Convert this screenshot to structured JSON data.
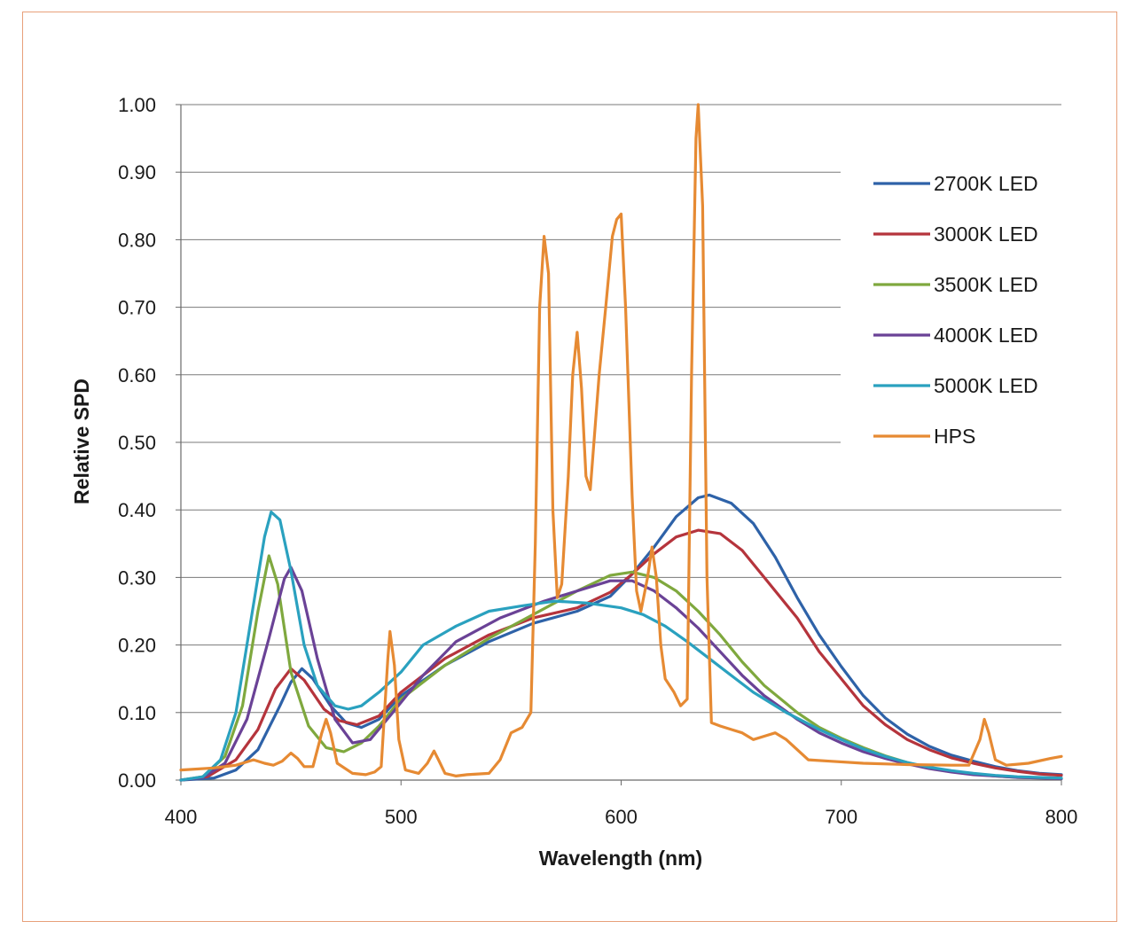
{
  "chart_data": {
    "type": "line",
    "title": "",
    "xlabel": "Wavelength (nm)",
    "ylabel": "Relative SPD",
    "xlim": [
      400,
      800
    ],
    "ylim": [
      0,
      1
    ],
    "x_ticks": [
      400,
      500,
      600,
      700,
      800
    ],
    "x_tick_labels": [
      "400",
      "500",
      "600",
      "700",
      "800"
    ],
    "y_ticks": [
      0,
      0.1,
      0.2,
      0.3,
      0.4,
      0.5,
      0.6,
      0.7,
      0.8,
      0.9,
      1.0
    ],
    "y_tick_labels": [
      "0.00",
      "0.10",
      "0.20",
      "0.30",
      "0.40",
      "0.50",
      "0.60",
      "0.70",
      "0.80",
      "0.90",
      "1.00"
    ],
    "grid": "horizontal",
    "legend_position": "right",
    "series": [
      {
        "name": "2700K LED",
        "color": "#2e62a8",
        "points": [
          [
            400,
            0
          ],
          [
            415,
            0.003
          ],
          [
            425,
            0.015
          ],
          [
            435,
            0.045
          ],
          [
            445,
            0.11
          ],
          [
            450,
            0.145
          ],
          [
            455,
            0.165
          ],
          [
            460,
            0.15
          ],
          [
            468,
            0.11
          ],
          [
            475,
            0.085
          ],
          [
            482,
            0.078
          ],
          [
            490,
            0.09
          ],
          [
            500,
            0.125
          ],
          [
            520,
            0.17
          ],
          [
            540,
            0.205
          ],
          [
            560,
            0.232
          ],
          [
            580,
            0.25
          ],
          [
            595,
            0.272
          ],
          [
            605,
            0.305
          ],
          [
            615,
            0.345
          ],
          [
            625,
            0.39
          ],
          [
            635,
            0.418
          ],
          [
            640,
            0.422
          ],
          [
            650,
            0.41
          ],
          [
            660,
            0.38
          ],
          [
            670,
            0.33
          ],
          [
            680,
            0.27
          ],
          [
            690,
            0.215
          ],
          [
            700,
            0.168
          ],
          [
            710,
            0.125
          ],
          [
            720,
            0.092
          ],
          [
            730,
            0.068
          ],
          [
            740,
            0.05
          ],
          [
            750,
            0.037
          ],
          [
            760,
            0.028
          ],
          [
            770,
            0.02
          ],
          [
            780,
            0.014
          ],
          [
            790,
            0.01
          ],
          [
            800,
            0.008
          ]
        ]
      },
      {
        "name": "3000K LED",
        "color": "#b5343c",
        "points": [
          [
            400,
            0
          ],
          [
            412,
            0.005
          ],
          [
            425,
            0.03
          ],
          [
            435,
            0.075
          ],
          [
            443,
            0.135
          ],
          [
            450,
            0.165
          ],
          [
            456,
            0.148
          ],
          [
            465,
            0.105
          ],
          [
            472,
            0.088
          ],
          [
            480,
            0.082
          ],
          [
            490,
            0.095
          ],
          [
            500,
            0.13
          ],
          [
            520,
            0.18
          ],
          [
            540,
            0.215
          ],
          [
            560,
            0.24
          ],
          [
            580,
            0.255
          ],
          [
            595,
            0.278
          ],
          [
            605,
            0.305
          ],
          [
            615,
            0.335
          ],
          [
            625,
            0.36
          ],
          [
            635,
            0.37
          ],
          [
            645,
            0.365
          ],
          [
            655,
            0.34
          ],
          [
            665,
            0.3
          ],
          [
            680,
            0.24
          ],
          [
            690,
            0.19
          ],
          [
            700,
            0.15
          ],
          [
            710,
            0.11
          ],
          [
            720,
            0.082
          ],
          [
            730,
            0.06
          ],
          [
            740,
            0.045
          ],
          [
            750,
            0.033
          ],
          [
            760,
            0.025
          ],
          [
            770,
            0.018
          ],
          [
            780,
            0.013
          ],
          [
            790,
            0.009
          ],
          [
            800,
            0.007
          ]
        ]
      },
      {
        "name": "3500K LED",
        "color": "#7fa83e",
        "points": [
          [
            400,
            0
          ],
          [
            410,
            0.005
          ],
          [
            420,
            0.035
          ],
          [
            428,
            0.11
          ],
          [
            435,
            0.25
          ],
          [
            440,
            0.332
          ],
          [
            444,
            0.29
          ],
          [
            450,
            0.16
          ],
          [
            458,
            0.08
          ],
          [
            466,
            0.048
          ],
          [
            474,
            0.042
          ],
          [
            482,
            0.055
          ],
          [
            490,
            0.08
          ],
          [
            500,
            0.12
          ],
          [
            520,
            0.17
          ],
          [
            540,
            0.21
          ],
          [
            560,
            0.245
          ],
          [
            580,
            0.28
          ],
          [
            595,
            0.303
          ],
          [
            605,
            0.308
          ],
          [
            615,
            0.3
          ],
          [
            625,
            0.28
          ],
          [
            635,
            0.25
          ],
          [
            645,
            0.215
          ],
          [
            655,
            0.175
          ],
          [
            665,
            0.14
          ],
          [
            680,
            0.1
          ],
          [
            690,
            0.078
          ],
          [
            700,
            0.062
          ],
          [
            710,
            0.048
          ],
          [
            720,
            0.036
          ],
          [
            730,
            0.026
          ],
          [
            740,
            0.018
          ],
          [
            750,
            0.013
          ],
          [
            760,
            0.009
          ],
          [
            770,
            0.006
          ],
          [
            780,
            0.004
          ],
          [
            790,
            0.003
          ],
          [
            800,
            0.002
          ]
        ]
      },
      {
        "name": "4000K LED",
        "color": "#6a4296",
        "points": [
          [
            400,
            0
          ],
          [
            410,
            0.004
          ],
          [
            420,
            0.025
          ],
          [
            430,
            0.09
          ],
          [
            440,
            0.21
          ],
          [
            447,
            0.298
          ],
          [
            450,
            0.315
          ],
          [
            455,
            0.28
          ],
          [
            462,
            0.18
          ],
          [
            470,
            0.09
          ],
          [
            478,
            0.055
          ],
          [
            486,
            0.06
          ],
          [
            495,
            0.095
          ],
          [
            510,
            0.155
          ],
          [
            525,
            0.205
          ],
          [
            545,
            0.24
          ],
          [
            565,
            0.265
          ],
          [
            580,
            0.28
          ],
          [
            595,
            0.295
          ],
          [
            605,
            0.295
          ],
          [
            615,
            0.28
          ],
          [
            625,
            0.255
          ],
          [
            635,
            0.225
          ],
          [
            645,
            0.19
          ],
          [
            655,
            0.155
          ],
          [
            665,
            0.125
          ],
          [
            680,
            0.09
          ],
          [
            690,
            0.07
          ],
          [
            700,
            0.055
          ],
          [
            710,
            0.042
          ],
          [
            720,
            0.032
          ],
          [
            730,
            0.024
          ],
          [
            740,
            0.017
          ],
          [
            750,
            0.012
          ],
          [
            760,
            0.008
          ],
          [
            770,
            0.006
          ],
          [
            780,
            0.004
          ],
          [
            790,
            0.003
          ],
          [
            800,
            0.002
          ]
        ]
      },
      {
        "name": "5000K LED",
        "color": "#2aa1bf",
        "points": [
          [
            400,
            0
          ],
          [
            410,
            0.005
          ],
          [
            418,
            0.03
          ],
          [
            425,
            0.1
          ],
          [
            432,
            0.24
          ],
          [
            438,
            0.36
          ],
          [
            441,
            0.397
          ],
          [
            445,
            0.385
          ],
          [
            450,
            0.31
          ],
          [
            456,
            0.2
          ],
          [
            462,
            0.14
          ],
          [
            470,
            0.11
          ],
          [
            476,
            0.105
          ],
          [
            482,
            0.11
          ],
          [
            490,
            0.13
          ],
          [
            500,
            0.16
          ],
          [
            510,
            0.2
          ],
          [
            525,
            0.228
          ],
          [
            540,
            0.25
          ],
          [
            555,
            0.258
          ],
          [
            570,
            0.265
          ],
          [
            585,
            0.262
          ],
          [
            600,
            0.255
          ],
          [
            610,
            0.245
          ],
          [
            620,
            0.228
          ],
          [
            630,
            0.205
          ],
          [
            640,
            0.18
          ],
          [
            650,
            0.155
          ],
          [
            660,
            0.13
          ],
          [
            675,
            0.1
          ],
          [
            690,
            0.075
          ],
          [
            700,
            0.06
          ],
          [
            710,
            0.046
          ],
          [
            720,
            0.035
          ],
          [
            730,
            0.026
          ],
          [
            740,
            0.019
          ],
          [
            750,
            0.014
          ],
          [
            760,
            0.01
          ],
          [
            770,
            0.007
          ],
          [
            780,
            0.005
          ],
          [
            790,
            0.004
          ],
          [
            800,
            0.003
          ]
        ]
      },
      {
        "name": "HPS",
        "color": "#e68a33",
        "points": [
          [
            400,
            0.015
          ],
          [
            415,
            0.018
          ],
          [
            425,
            0.022
          ],
          [
            433,
            0.03
          ],
          [
            438,
            0.025
          ],
          [
            442,
            0.022
          ],
          [
            446,
            0.028
          ],
          [
            450,
            0.04
          ],
          [
            453,
            0.032
          ],
          [
            456,
            0.02
          ],
          [
            460,
            0.02
          ],
          [
            464,
            0.07
          ],
          [
            466,
            0.09
          ],
          [
            468,
            0.07
          ],
          [
            471,
            0.025
          ],
          [
            478,
            0.01
          ],
          [
            484,
            0.008
          ],
          [
            488,
            0.012
          ],
          [
            491,
            0.02
          ],
          [
            494,
            0.18
          ],
          [
            495,
            0.22
          ],
          [
            497,
            0.17
          ],
          [
            499,
            0.06
          ],
          [
            502,
            0.015
          ],
          [
            508,
            0.01
          ],
          [
            512,
            0.025
          ],
          [
            515,
            0.043
          ],
          [
            517,
            0.03
          ],
          [
            520,
            0.01
          ],
          [
            525,
            0.006
          ],
          [
            530,
            0.008
          ],
          [
            540,
            0.01
          ],
          [
            545,
            0.03
          ],
          [
            550,
            0.07
          ],
          [
            555,
            0.078
          ],
          [
            559,
            0.1
          ],
          [
            561,
            0.35
          ],
          [
            563,
            0.7
          ],
          [
            565,
            0.805
          ],
          [
            567,
            0.75
          ],
          [
            569,
            0.4
          ],
          [
            571,
            0.27
          ],
          [
            573,
            0.29
          ],
          [
            576,
            0.45
          ],
          [
            578,
            0.6
          ],
          [
            580,
            0.663
          ],
          [
            582,
            0.58
          ],
          [
            584,
            0.45
          ],
          [
            586,
            0.43
          ],
          [
            590,
            0.6
          ],
          [
            593,
            0.7
          ],
          [
            596,
            0.805
          ],
          [
            598,
            0.83
          ],
          [
            600,
            0.838
          ],
          [
            602,
            0.7
          ],
          [
            605,
            0.42
          ],
          [
            607,
            0.28
          ],
          [
            609,
            0.25
          ],
          [
            612,
            0.3
          ],
          [
            614,
            0.345
          ],
          [
            616,
            0.3
          ],
          [
            618,
            0.2
          ],
          [
            620,
            0.15
          ],
          [
            624,
            0.13
          ],
          [
            627,
            0.11
          ],
          [
            630,
            0.12
          ],
          [
            632,
            0.6
          ],
          [
            634,
            0.95
          ],
          [
            635,
            1.0
          ],
          [
            637,
            0.85
          ],
          [
            639,
            0.3
          ],
          [
            641,
            0.085
          ],
          [
            645,
            0.08
          ],
          [
            650,
            0.075
          ],
          [
            655,
            0.07
          ],
          [
            660,
            0.06
          ],
          [
            665,
            0.065
          ],
          [
            670,
            0.07
          ],
          [
            675,
            0.06
          ],
          [
            680,
            0.045
          ],
          [
            685,
            0.03
          ],
          [
            695,
            0.028
          ],
          [
            710,
            0.025
          ],
          [
            730,
            0.023
          ],
          [
            750,
            0.022
          ],
          [
            758,
            0.022
          ],
          [
            763,
            0.06
          ],
          [
            765,
            0.09
          ],
          [
            767,
            0.07
          ],
          [
            770,
            0.03
          ],
          [
            775,
            0.022
          ],
          [
            785,
            0.025
          ],
          [
            795,
            0.032
          ],
          [
            800,
            0.035
          ]
        ]
      }
    ]
  }
}
